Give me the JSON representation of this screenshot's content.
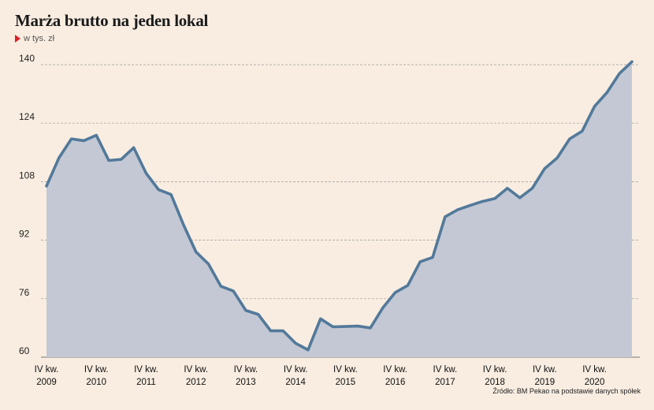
{
  "header": {
    "title": "Marża brutto na jeden lokal",
    "subtitle": "w tys. zł"
  },
  "footer": {
    "source": "Źródło: BM Pekao na podstawie danych spółek"
  },
  "colors": {
    "background": "#f9ede1",
    "line": "#52799a",
    "area": "#c3c8d4",
    "marker": "#e0202a"
  },
  "chart_data": {
    "type": "area",
    "title": "Marża brutto na jeden lokal",
    "ylabel": "w tys. zł",
    "ylim": [
      60,
      141
    ],
    "yticks": [
      60,
      76,
      92,
      108,
      124,
      140
    ],
    "grid": "horizontal dashed",
    "xticks": [
      {
        "line1": "IV kw.",
        "line2": "2009",
        "index": 0
      },
      {
        "line1": "IV kw.",
        "line2": "2010",
        "index": 4
      },
      {
        "line1": "IV kw.",
        "line2": "2011",
        "index": 8
      },
      {
        "line1": "IV kw.",
        "line2": "2012",
        "index": 12
      },
      {
        "line1": "IV kw.",
        "line2": "2013",
        "index": 16
      },
      {
        "line1": "IV kw.",
        "line2": "2014",
        "index": 20
      },
      {
        "line1": "IV kw.",
        "line2": "2015",
        "index": 24
      },
      {
        "line1": "IV kw.",
        "line2": "2016",
        "index": 28
      },
      {
        "line1": "IV kw.",
        "line2": "2017",
        "index": 32
      },
      {
        "line1": "IV kw.",
        "line2": "2018",
        "index": 36
      },
      {
        "line1": "IV kw.",
        "line2": "2019",
        "index": 40
      },
      {
        "line1": "IV kw.",
        "line2": "2020",
        "index": 44
      }
    ],
    "values": [
      106.8,
      114.5,
      119.7,
      119.2,
      120.7,
      113.8,
      114.1,
      117.3,
      110.3,
      105.8,
      104.5,
      96.2,
      88.8,
      85.5,
      79.4,
      78.1,
      72.8,
      71.7,
      67.2,
      67.2,
      63.8,
      62.0,
      70.5,
      68.3,
      68.4,
      68.5,
      68.0,
      73.5,
      77.7,
      79.6,
      86.1,
      87.3,
      98.4,
      100.3,
      101.5,
      102.6,
      103.4,
      106.2,
      103.6,
      106.2,
      111.6,
      114.5,
      119.7,
      121.8,
      128.6,
      132.4,
      137.6,
      140.8
    ]
  }
}
